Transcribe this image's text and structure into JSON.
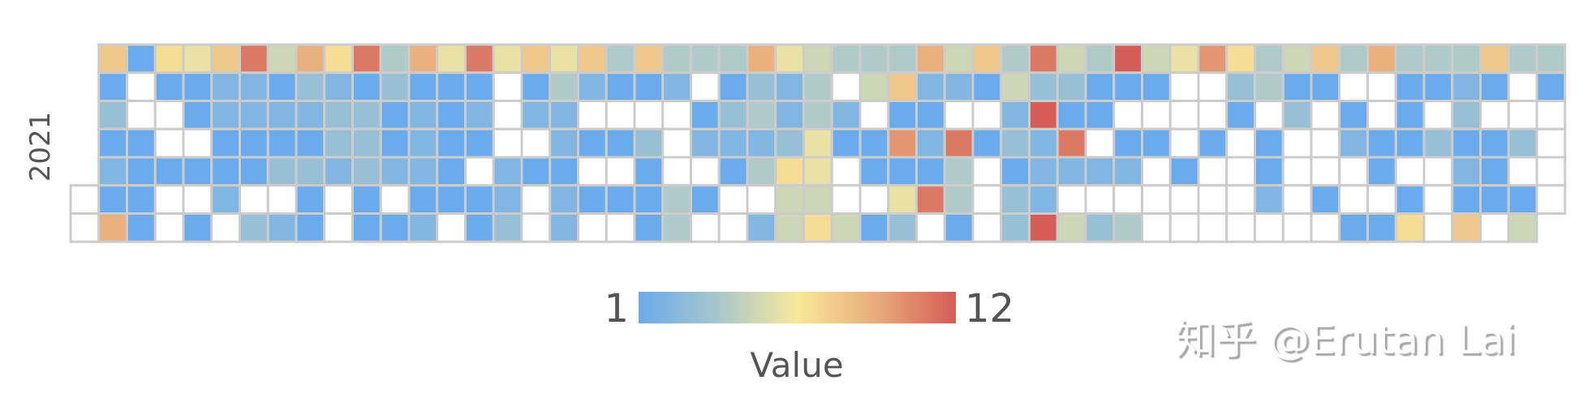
{
  "chart_data": {
    "type": "heatmap",
    "subtype": "calendar",
    "year": "2021",
    "week_start": "Sunday",
    "visual_map": {
      "min": 1,
      "max": 12,
      "min_label": "1",
      "max_label": "12",
      "title": "Value"
    },
    "colors": {
      "stops": [
        "#6aabee",
        "#a8c7cc",
        "#f9e89b",
        "#e9ab7b",
        "#d55c57"
      ],
      "empty": "#ffffff",
      "cell_border": "#cccccc"
    },
    "values": [
      null,
      null,
      8,
      1,
      3,
      1,
      2,
      1,
      9,
      1,
      null,
      null,
      1,
      1,
      1,
      1,
      7,
      1,
      null,
      null,
      1,
      null,
      null,
      6,
      1,
      1,
      null,
      1,
      null,
      1,
      8,
      2,
      2,
      1,
      1,
      2,
      null,
      11,
      2,
      2,
      1,
      1,
      null,
      3,
      5,
      1,
      2,
      1,
      3,
      null,
      2,
      9,
      3,
      2,
      1,
      3,
      1,
      1,
      7,
      2,
      3,
      3,
      2,
      null,
      null,
      11,
      1,
      3,
      3,
      3,
      1,
      1,
      4,
      3,
      1,
      1,
      2,
      null,
      1,
      9,
      1,
      2,
      2,
      2,
      1,
      2,
      6,
      1,
      1,
      1,
      1,
      1,
      null,
      11,
      1,
      2,
      1,
      null,
      1,
      1,
      6,
      null,
      null,
      null,
      2,
      2,
      3,
      8,
      1,
      2,
      null,
      1,
      null,
      null,
      6,
      4,
      2,
      2,
      1,
      2,
      2,
      8,
      2,
      null,
      1,
      null,
      1,
      null,
      4,
      1,
      null,
      1,
      null,
      1,
      null,
      8,
      1,
      null,
      3,
      1,
      1,
      1,
      4,
      2,
      null,
      null,
      null,
      4,
      4,
      4,
      null,
      1,
      2,
      null,
      1,
      null,
      4,
      1,
      3,
      2,
      1,
      null,
      null,
      9,
      3,
      4,
      2,
      4,
      null,
      2,
      6,
      2,
      2,
      3,
      7,
      5,
      5,
      5,
      4,
      4,
      6,
      6,
      5,
      7,
      4,
      null,
      2,
      1,
      null,
      null,
      5,
      4,
      5,
      null,
      1,
      1,
      null,
      1,
      4,
      8,
      1,
      10,
      1,
      6,
      3,
      9,
      2,
      1,
      2,
      1,
      11,
      null,
      5,
      2,
      null,
      11,
      4,
      4,
      1,
      8,
      1,
      null,
      1,
      null,
      null,
      null,
      4,
      5,
      2,
      3,
      1,
      3,
      3,
      11,
      3,
      12,
      2,
      2,
      2,
      12,
      5,
      3,
      1,
      11,
      2,
      null,
      5,
      4,
      1,
      1,
      null,
      2,
      null,
      3,
      12,
      1,
      null,
      1,
      2,
      null,
      4,
      5,
      1,
      null,
      1,
      null,
      null,
      null,
      6,
      null,
      null,
      null,
      1,
      null,
      null,
      10,
      null,
      null,
      1,
      null,
      null,
      null,
      7,
      3,
      1,
      null,
      null,
      null,
      null,
      4,
      4,
      null,
      1,
      1,
      2,
      null,
      5,
      1,
      3,
      null,
      null,
      null,
      null,
      8,
      1,
      null,
      null,
      null,
      1,
      null,
      4,
      null,
      1,
      2,
      null,
      null,
      1,
      9,
      null,
      null,
      1,
      1,
      null,
      1,
      4,
      1,
      1,
      1,
      null,
      1,
      7,
      4,
      1,
      null,
      3,
      null,
      null,
      null,
      4,
      2,
      3,
      1,
      2,
      1,
      8,
      8,
      1,
      null,
      1,
      1,
      1,
      null,
      4,
      null,
      null,
      3,
      null,
      1,
      5,
      4,
      1,
      null,
      null,
      null,
      null
    ]
  },
  "watermark": {
    "text": "知乎 @Erutan Lai"
  }
}
